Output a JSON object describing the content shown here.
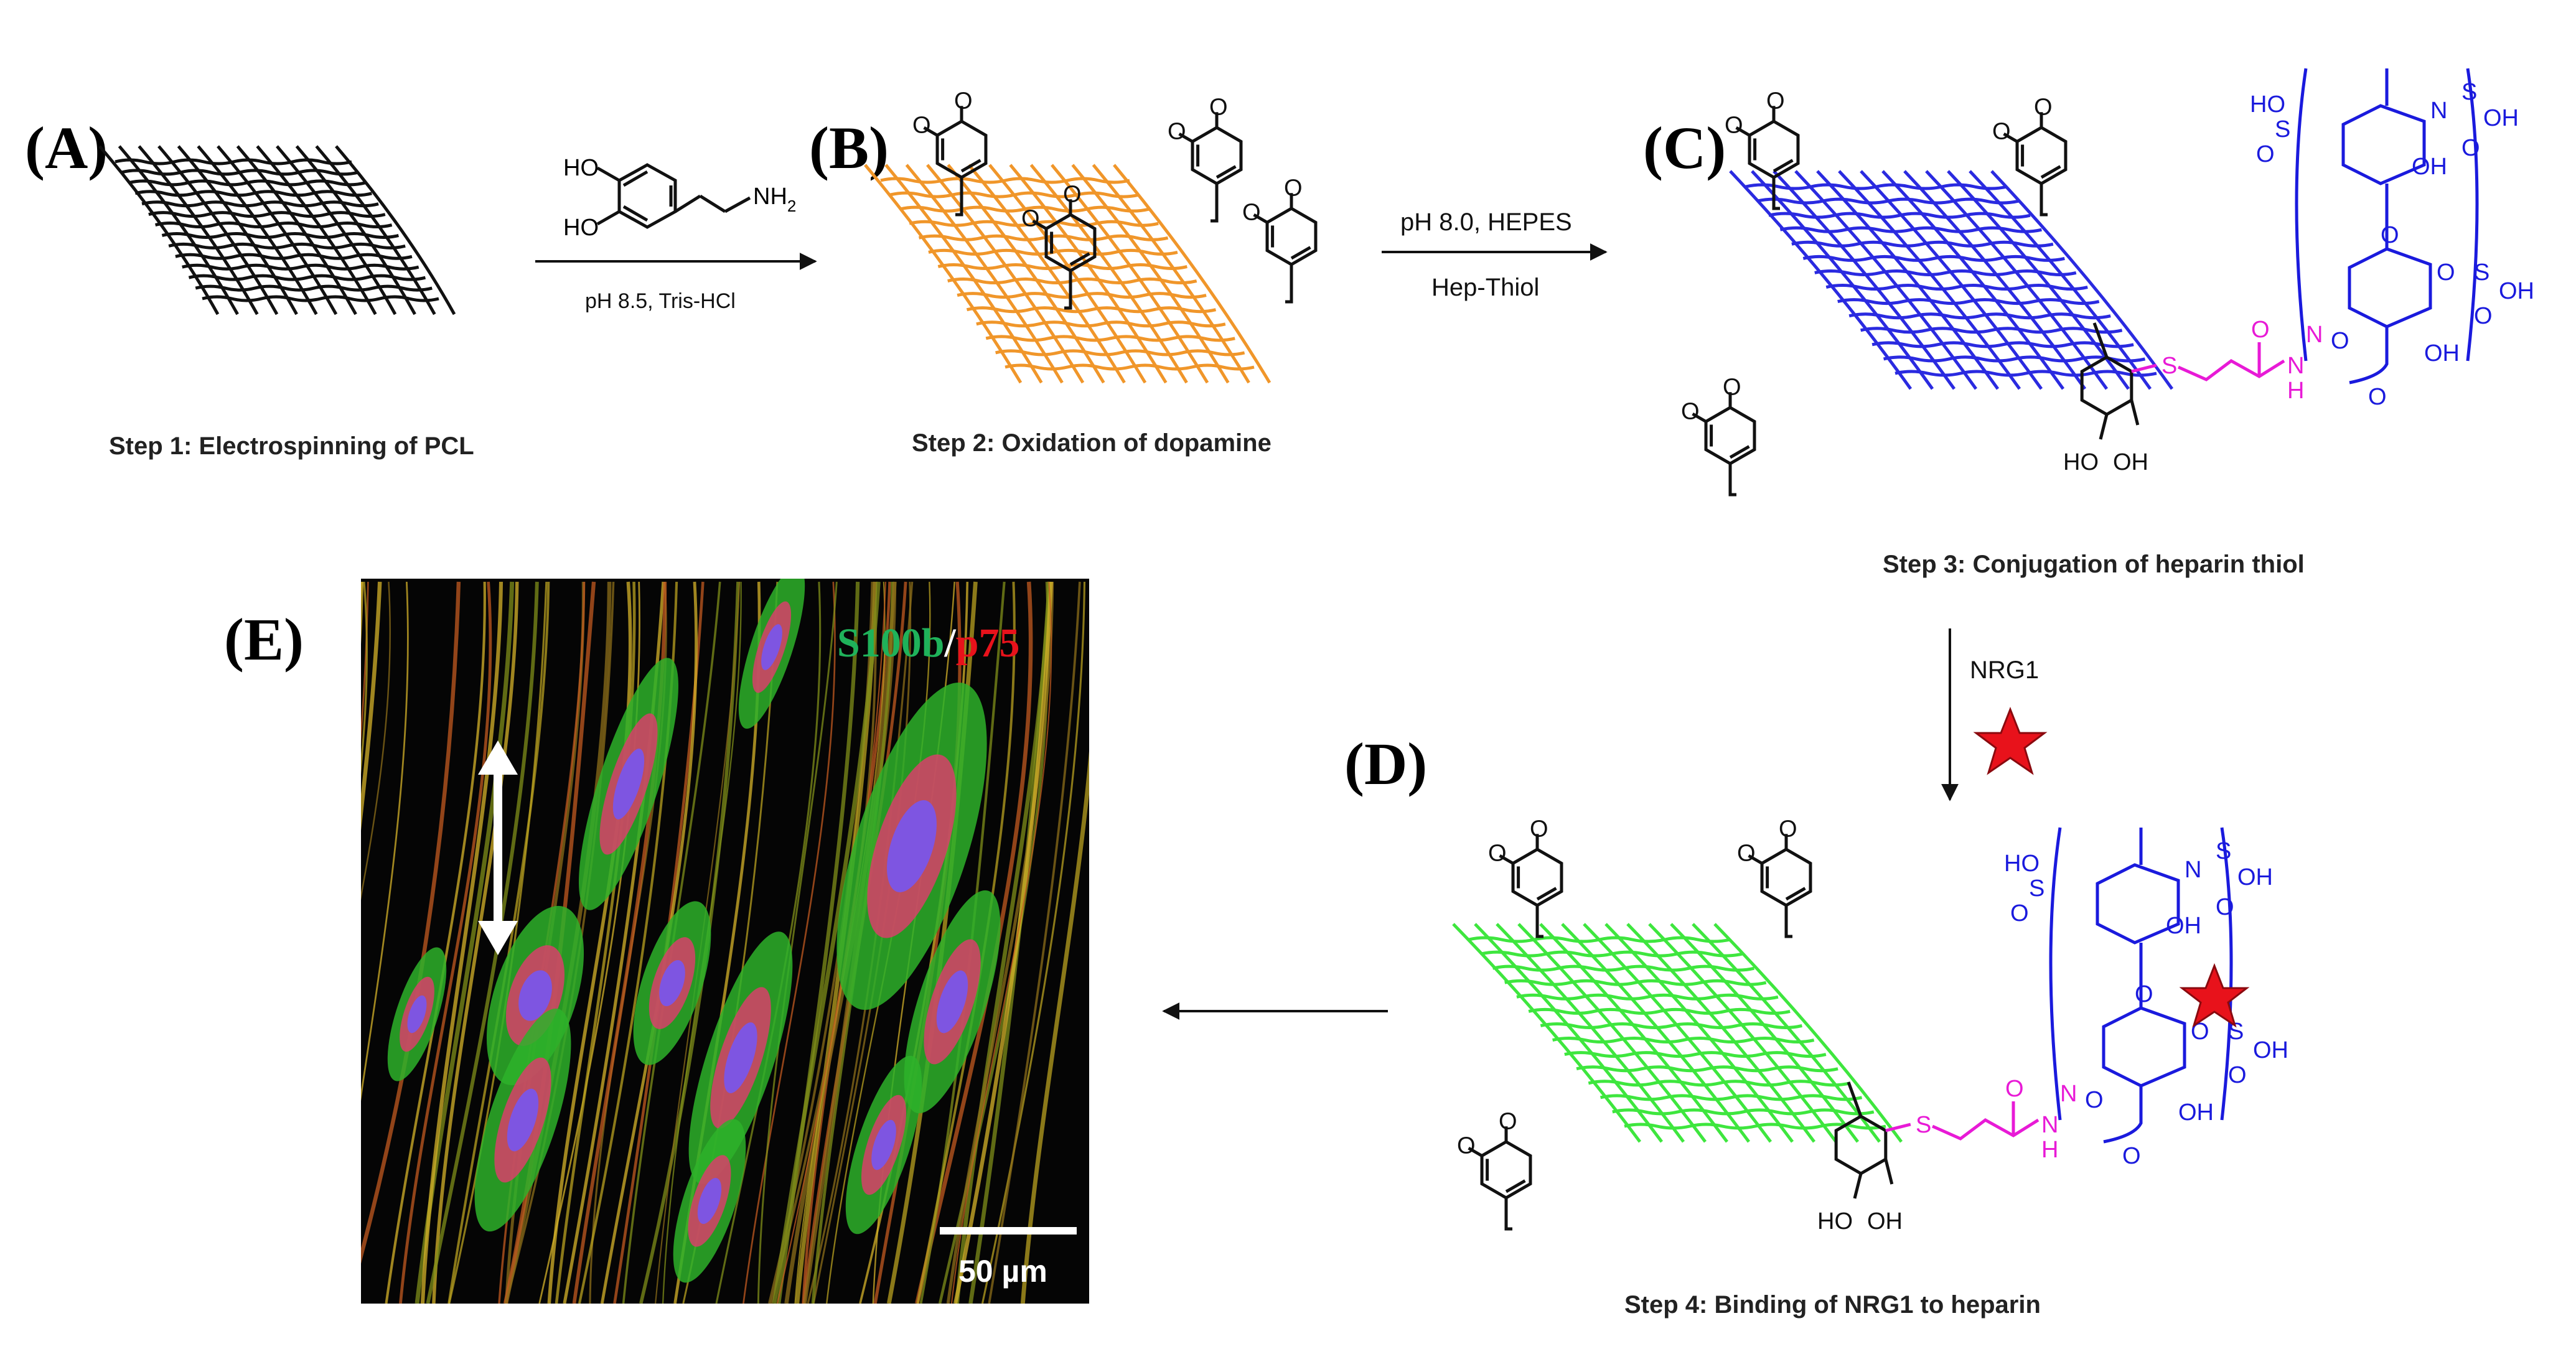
{
  "panels": {
    "a": {
      "letter": "(A)",
      "step": "Step 1: Electrospinning of PCL"
    },
    "b": {
      "letter": "(B)",
      "step": "Step 2: Oxidation of dopamine"
    },
    "c": {
      "letter": "(C)",
      "step": "Step 3: Conjugation of heparin thiol"
    },
    "d": {
      "letter": "(D)",
      "step": "Step 4: Binding of NRG1 to heparin"
    },
    "e": {
      "letter": "(E)"
    }
  },
  "arrows": {
    "ab": {
      "top_ho1": "HO",
      "top_ho2": "HO",
      "top_nh2": "NH",
      "top_nh2_sub": "2",
      "bottom": "pH 8.5, Tris-HCl"
    },
    "bc": {
      "top": "pH 8.0, HEPES",
      "bottom": "Hep-Thiol"
    },
    "cd": {
      "label": "NRG1"
    }
  },
  "chem_labels": {
    "o": "O",
    "oh": "OH",
    "ho": "HO",
    "s": "S",
    "h": "H",
    "n": "N",
    "nh": "N",
    "nh_h": "H",
    "so3": "S",
    "ho_sulf": "HO",
    "o_minus": "O"
  },
  "micrograph": {
    "legend_green": "S100b",
    "legend_sep": "/",
    "legend_red": "p75",
    "scale_bar": "50 µm"
  },
  "colors": {
    "mesh_a": "#111111",
    "mesh_b": "#f0962a",
    "mesh_c": "#2a2ae0",
    "mesh_d": "#3ee63e",
    "heparin": "#1a1add",
    "linker": "#e81ad6",
    "star": "#e8121b",
    "legend_green": "#1fb25a",
    "legend_red": "#e8121b"
  },
  "icons": {
    "nrg1": "red-star-icon",
    "double_arrow": "double-headed-arrow-icon"
  }
}
